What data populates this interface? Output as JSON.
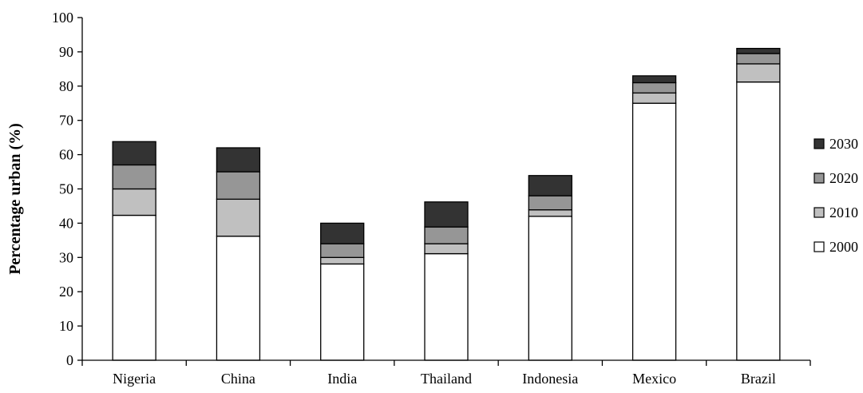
{
  "chart_data": {
    "type": "bar",
    "stacked": true,
    "title": "",
    "xlabel": "",
    "ylabel": "Percentage urban (%)",
    "ylim": [
      0,
      100
    ],
    "y_ticks": [
      0,
      10,
      20,
      30,
      40,
      50,
      60,
      70,
      80,
      90,
      100
    ],
    "categories": [
      "Nigeria",
      "China",
      "India",
      "Thailand",
      "Indonesia",
      "Mexico",
      "Brazil"
    ],
    "series": [
      {
        "name": "2000",
        "color": "#ffffff",
        "values": [
          42.3,
          36.2,
          28.1,
          31.1,
          42.0,
          75.0,
          81.2
        ]
      },
      {
        "name": "2010",
        "color": "#c0c0c0",
        "values": [
          7.7,
          10.8,
          1.9,
          2.9,
          1.9,
          3.0,
          5.3
        ]
      },
      {
        "name": "2020",
        "color": "#969696",
        "values": [
          7.0,
          8.0,
          4.0,
          4.9,
          4.1,
          3.0,
          3.0
        ]
      },
      {
        "name": "2030",
        "color": "#333333",
        "values": [
          6.8,
          7.0,
          6.0,
          7.3,
          5.9,
          2.0,
          1.5
        ]
      }
    ],
    "legend": {
      "position": "right",
      "entries": [
        "2030",
        "2020",
        "2010",
        "2000"
      ]
    },
    "grid": false
  }
}
